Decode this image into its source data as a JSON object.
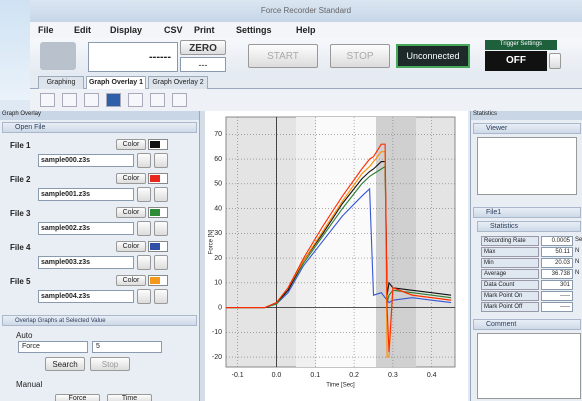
{
  "window": {
    "title": "Force Recorder Standard"
  },
  "menu": [
    "File",
    "Edit",
    "Display",
    "CSV",
    "Print",
    "Settings",
    "Help"
  ],
  "toolbar": {
    "display": "------",
    "zero": "ZERO",
    "zero_value": "---",
    "start": "START",
    "stop": "STOP",
    "status": "Unconnected",
    "trigger_label": "Trigger Settings",
    "trigger_value": "OFF"
  },
  "tabs": [
    "Graphing",
    "Graph Overlay 1",
    "Graph Overlay 2"
  ],
  "left_panel": {
    "title": "Graph Overlay",
    "open_file": "Open File",
    "files": [
      {
        "label": "File 1",
        "color_button": "Color",
        "swatch": "#111111",
        "file": "sample000.z3s"
      },
      {
        "label": "File 2",
        "color_button": "Color",
        "swatch": "#e8261c",
        "file": "sample001.z3s"
      },
      {
        "label": "File 3",
        "color_button": "Color",
        "swatch": "#2e8b36",
        "file": "sample002.z3s"
      },
      {
        "label": "File 4",
        "color_button": "Color",
        "swatch": "#2f4fa8",
        "file": "sample003.z3s"
      },
      {
        "label": "File 5",
        "color_button": "Color",
        "swatch": "#f39a1e",
        "file": "sample004.z3s"
      }
    ],
    "overlap": {
      "title": "Overlap Graphs at Selected Value",
      "auto": "Auto",
      "mode": "Force",
      "value": "5",
      "search": "Search",
      "stop": "Stop",
      "manual": "Manual",
      "manual_fields": [
        "Force",
        "Time"
      ]
    }
  },
  "chart_data": {
    "type": "line",
    "x_label": "Time [Sec]",
    "y_label": "Force [N]",
    "x": [
      -0.13,
      -0.03,
      0.0,
      0.03,
      0.07,
      0.12,
      0.17,
      0.22,
      0.24,
      0.25,
      0.27,
      0.28,
      0.285,
      0.29,
      0.3,
      0.35,
      0.4,
      0.45
    ],
    "series": [
      {
        "color": "#3557d6",
        "values": [
          0,
          0,
          1.5,
          6,
          17,
          27,
          37,
          45,
          48,
          5,
          6,
          4,
          3,
          2,
          3,
          4,
          3,
          2
        ]
      },
      {
        "color": "#2e7d32",
        "values": [
          0,
          0,
          1.5,
          7,
          18,
          29,
          40,
          50,
          53,
          54,
          56,
          57,
          2,
          5,
          7,
          6,
          5,
          4
        ]
      },
      {
        "color": "#111111",
        "values": [
          0,
          0,
          2,
          7,
          19,
          30,
          42,
          52,
          55,
          56,
          59,
          59,
          5,
          10,
          8,
          7,
          6,
          5
        ]
      },
      {
        "color": "#ff8c00",
        "values": [
          0,
          0,
          2,
          8,
          19,
          31,
          43,
          54,
          57,
          59,
          63,
          63,
          -20,
          -20,
          8,
          5,
          4,
          3
        ]
      },
      {
        "color": "#ff2a00",
        "values": [
          0,
          0,
          2,
          8,
          20,
          33,
          45,
          56,
          60,
          61,
          66,
          66,
          0,
          -18,
          8,
          5,
          4,
          3
        ]
      }
    ],
    "xlim": [
      -0.13,
      0.46
    ],
    "xticks": [
      -0.1,
      {
        "value": 0,
        "label": "0.0"
      },
      0.1,
      0.2,
      0.3,
      0.4
    ],
    "ylim": [
      -24,
      77
    ],
    "yticks": [
      -20,
      -10,
      0,
      10,
      20,
      30,
      40,
      50,
      60,
      70
    ],
    "grid": true
  },
  "right_panel": {
    "title": "Statistics",
    "viewer": "Viewer",
    "file": "File1",
    "statistics": "Statistics",
    "rows": [
      [
        "Recording Rate",
        "0.0005",
        "Sec"
      ],
      [
        "Max",
        "50.11",
        "N"
      ],
      [
        "Min",
        "20.03",
        "N"
      ],
      [
        "Average",
        "36.738",
        "N"
      ],
      [
        "Data Count",
        "301",
        ""
      ],
      [
        "Mark Point On",
        "-----",
        ""
      ],
      [
        "Mark Point Off",
        "-----",
        ""
      ]
    ],
    "comment": "Comment"
  }
}
